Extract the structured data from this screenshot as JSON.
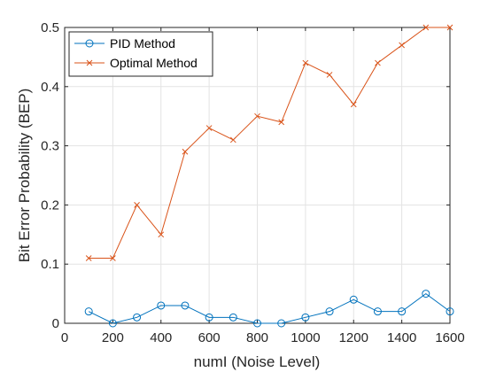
{
  "chart_data": {
    "type": "line",
    "title": "",
    "xlabel": "numI (Noise Level)",
    "ylabel": "Bit Error Probability (BEP)",
    "xlim": [
      0,
      1600
    ],
    "ylim": [
      0,
      0.5
    ],
    "xticks": [
      0,
      200,
      400,
      600,
      800,
      1000,
      1200,
      1400,
      1600
    ],
    "xtick_labels": [
      "0",
      "200",
      "400",
      "600",
      "800",
      "1000",
      "1200",
      "1400",
      "1600"
    ],
    "yticks": [
      0,
      0.1,
      0.2,
      0.3,
      0.4,
      0.5
    ],
    "ytick_labels": [
      "0",
      "0.1",
      "0.2",
      "0.3",
      "0.4",
      "0.5"
    ],
    "grid": true,
    "legend_position": "top-left",
    "x": [
      100,
      200,
      300,
      400,
      500,
      600,
      700,
      800,
      900,
      1000,
      1100,
      1200,
      1300,
      1400,
      1500,
      1600
    ],
    "series": [
      {
        "name": "PID Method",
        "color": "#0072BD",
        "marker": "circle",
        "values": [
          0.02,
          0.0,
          0.01,
          0.03,
          0.03,
          0.01,
          0.01,
          0.0,
          0.0,
          0.01,
          0.02,
          0.04,
          0.02,
          0.02,
          0.05,
          0.02
        ]
      },
      {
        "name": "Optimal Method",
        "color": "#D95319",
        "marker": "x",
        "values": [
          0.11,
          0.11,
          0.2,
          0.15,
          0.29,
          0.33,
          0.31,
          0.35,
          0.34,
          0.44,
          0.42,
          0.37,
          0.44,
          0.47,
          0.5,
          0.5
        ]
      }
    ]
  }
}
